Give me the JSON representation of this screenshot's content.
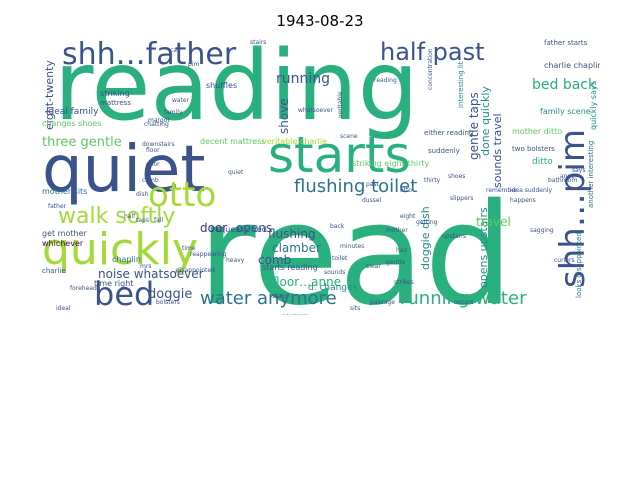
{
  "title": "1943-08-23",
  "palette": {
    "green": "#2ab07f",
    "teal": "#218f8d",
    "blue": "#2c728e",
    "indigo": "#3b528b",
    "purple": "#472d7b",
    "dark": "#440154",
    "lime": "#a2da37",
    "yellow": "#d8e219",
    "light_green": "#5ec962"
  },
  "words": [
    {
      "text": "reading",
      "color": "green"
    },
    {
      "text": "read",
      "color": "green"
    },
    {
      "text": "quiet",
      "color": "indigo"
    },
    {
      "text": "starts",
      "color": "green"
    },
    {
      "text": "quickly",
      "color": "lime"
    },
    {
      "text": "shh…father",
      "color": "indigo"
    },
    {
      "text": "half past",
      "color": "indigo"
    },
    {
      "text": "otto",
      "color": "lime"
    },
    {
      "text": "bed",
      "color": "indigo"
    },
    {
      "text": "walk softly",
      "color": "lime"
    },
    {
      "text": "shh…pim",
      "color": "indigo"
    },
    {
      "text": "flushing toilet",
      "color": "blue"
    },
    {
      "text": "water anymore",
      "color": "blue"
    },
    {
      "text": "running water",
      "color": "green"
    },
    {
      "text": "running",
      "color": "indigo"
    },
    {
      "text": "bed back",
      "color": "green"
    },
    {
      "text": "gentle taps",
      "color": "indigo"
    },
    {
      "text": "three gentle",
      "color": "light_green"
    },
    {
      "text": "doggie",
      "color": "indigo"
    },
    {
      "text": "door",
      "color": "purple"
    },
    {
      "text": "opens",
      "color": "indigo"
    },
    {
      "text": "noise whatsoever",
      "color": "indigo"
    },
    {
      "text": "flushing",
      "color": "indigo"
    },
    {
      "text": "comb",
      "color": "indigo"
    },
    {
      "text": "clamber",
      "color": "blue"
    },
    {
      "text": "floor…anne",
      "color": "green"
    },
    {
      "text": "doggie dish",
      "color": "teal"
    },
    {
      "text": "opens upstairs",
      "color": "teal"
    },
    {
      "text": "sounds travel",
      "color": "indigo"
    },
    {
      "text": "travel",
      "color": "light_green"
    },
    {
      "text": "done quickly",
      "color": "teal"
    },
    {
      "text": "shove",
      "color": "indigo"
    },
    {
      "text": "eight-twenty",
      "color": "indigo"
    },
    {
      "text": "changes shoes",
      "color": "light_green"
    },
    {
      "text": "ideal family",
      "color": "indigo"
    },
    {
      "text": "mother sits",
      "color": "blue"
    },
    {
      "text": "get mother",
      "color": "indigo"
    },
    {
      "text": "whichever",
      "color": "dark"
    },
    {
      "text": "time right",
      "color": "indigo"
    },
    {
      "text": "starts reading",
      "color": "indigo"
    },
    {
      "text": "d. changes",
      "color": "teal"
    },
    {
      "text": "decent mattress",
      "color": "light_green"
    },
    {
      "text": "veritable charlie",
      "color": "lime"
    },
    {
      "text": "squeaky bed",
      "color": "indigo"
    },
    {
      "text": "chaplin",
      "color": "blue"
    },
    {
      "text": "charlie chaplin",
      "color": "indigo"
    },
    {
      "text": "quickly says",
      "color": "teal"
    },
    {
      "text": "father starts",
      "color": "indigo"
    },
    {
      "text": "stairs",
      "color": "indigo"
    },
    {
      "text": "striking",
      "color": "indigo"
    },
    {
      "text": "mattress",
      "color": "indigo"
    },
    {
      "text": "shuffles",
      "color": "indigo"
    },
    {
      "text": "mother ditto",
      "color": "light_green"
    },
    {
      "text": "family scene",
      "color": "teal"
    },
    {
      "text": "interesting lit",
      "color": "teal"
    },
    {
      "text": "striking eight-thirty",
      "color": "light_green"
    },
    {
      "text": "suddenly",
      "color": "indigo"
    },
    {
      "text": "two bolsters",
      "color": "indigo"
    },
    {
      "text": "ditto",
      "color": "green"
    },
    {
      "text": "looks disappointed",
      "color": "blue"
    },
    {
      "text": "another interesting",
      "color": "blue"
    },
    {
      "text": "idea suddenly",
      "color": "indigo"
    },
    {
      "text": "either reading",
      "color": "indigo"
    },
    {
      "text": "charlie",
      "color": "indigo"
    },
    {
      "text": "whatsoever",
      "color": "indigo"
    },
    {
      "text": "cat",
      "color": "indigo"
    },
    {
      "text": "water",
      "color": "indigo"
    },
    {
      "text": "family",
      "color": "indigo"
    },
    {
      "text": "pim",
      "color": "indigo"
    },
    {
      "text": "otto",
      "color": "indigo"
    },
    {
      "text": "anne",
      "color": "indigo"
    },
    {
      "text": "eight",
      "color": "indigo"
    },
    {
      "text": "bolsters",
      "color": "indigo"
    },
    {
      "text": "slippers",
      "color": "indigo"
    },
    {
      "text": "shoes",
      "color": "indigo"
    },
    {
      "text": "dish",
      "color": "indigo"
    },
    {
      "text": "taps",
      "color": "indigo"
    },
    {
      "text": "past",
      "color": "indigo"
    },
    {
      "text": "dussel",
      "color": "indigo"
    },
    {
      "text": "back",
      "color": "indigo"
    },
    {
      "text": "disappointed",
      "color": "indigo"
    },
    {
      "text": "manage",
      "color": "indigo"
    },
    {
      "text": "upstairs",
      "color": "indigo"
    },
    {
      "text": "sits",
      "color": "indigo"
    },
    {
      "text": "floor",
      "color": "indigo"
    },
    {
      "text": "reading",
      "color": "indigo"
    },
    {
      "text": "anymore",
      "color": "indigo"
    },
    {
      "text": "toilet",
      "color": "indigo"
    },
    {
      "text": "sounds",
      "color": "indigo"
    },
    {
      "text": "veritable",
      "color": "indigo"
    },
    {
      "text": "scene",
      "color": "indigo"
    },
    {
      "text": "concentration",
      "color": "indigo"
    },
    {
      "text": "chatting",
      "color": "indigo"
    },
    {
      "text": "time",
      "color": "indigo"
    },
    {
      "text": "clear",
      "color": "indigo"
    },
    {
      "text": "reappearing",
      "color": "indigo"
    },
    {
      "text": "father",
      "color": "indigo"
    },
    {
      "text": "forehead",
      "color": "indigo"
    },
    {
      "text": "margot",
      "color": "indigo"
    },
    {
      "text": "remember",
      "color": "indigo"
    },
    {
      "text": "hair",
      "color": "indigo"
    },
    {
      "text": "downstairs",
      "color": "indigo"
    },
    {
      "text": "passage",
      "color": "indigo"
    },
    {
      "text": "getting",
      "color": "indigo"
    },
    {
      "text": "bathroom",
      "color": "indigo"
    },
    {
      "text": "curlers",
      "color": "indigo"
    },
    {
      "text": "gentle",
      "color": "indigo"
    },
    {
      "text": "strikes",
      "color": "indigo"
    },
    {
      "text": "ideal",
      "color": "indigo"
    },
    {
      "text": "heavy",
      "color": "indigo"
    },
    {
      "text": "comb",
      "color": "indigo"
    },
    {
      "text": "mrs",
      "color": "indigo"
    },
    {
      "text": "happens",
      "color": "indigo"
    },
    {
      "text": "stand",
      "color": "indigo"
    },
    {
      "text": "occurs",
      "color": "indigo"
    },
    {
      "text": "quiet",
      "color": "indigo"
    },
    {
      "text": "door",
      "color": "indigo"
    },
    {
      "text": "says",
      "color": "indigo"
    },
    {
      "text": "half",
      "color": "indigo"
    },
    {
      "text": "thirty",
      "color": "indigo"
    },
    {
      "text": "minutes",
      "color": "indigo"
    },
    {
      "text": "fall",
      "color": "indigo"
    },
    {
      "text": "sagging",
      "color": "indigo"
    },
    {
      "text": "mother",
      "color": "indigo"
    }
  ]
}
